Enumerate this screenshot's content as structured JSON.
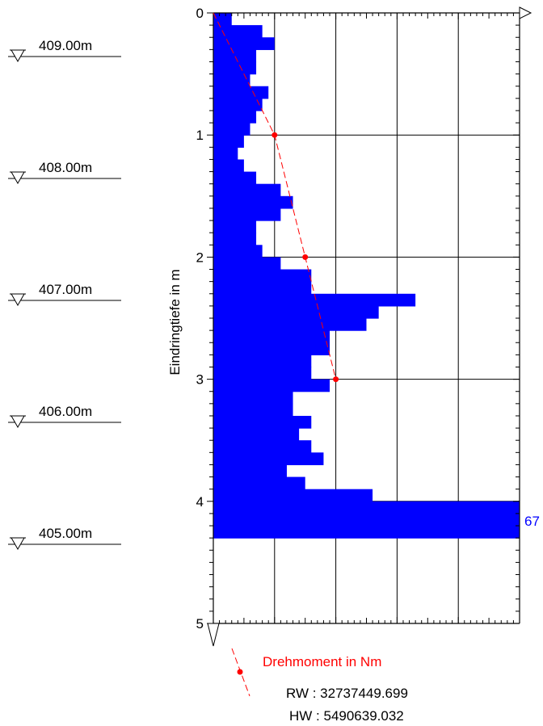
{
  "chart_data": {
    "type": "bar",
    "orientation": "horizontal",
    "ylabel": "Eindringtiefe in m",
    "ylim": [
      0,
      5
    ],
    "y_ticks": [
      "0",
      "1",
      "2",
      "3",
      "4",
      "5"
    ],
    "xlim": [
      0,
      50
    ],
    "grid": true,
    "colors": {
      "bars": "#0000ff",
      "torque": "#ff0000",
      "axes": "#000000"
    },
    "series": [
      {
        "kind": "blow-count-bars",
        "depth_from": [
          0.0,
          0.1,
          0.2,
          0.3,
          0.4,
          0.5,
          0.6,
          0.7,
          0.8,
          0.9,
          1.0,
          1.1,
          1.2,
          1.3,
          1.4,
          1.5,
          1.6,
          1.7,
          1.8,
          1.9,
          2.0,
          2.1,
          2.2,
          2.3,
          2.4,
          2.5,
          2.6,
          2.7,
          2.8,
          2.9,
          3.0,
          3.1,
          3.2,
          3.3,
          3.4,
          3.5,
          3.6,
          3.7,
          3.8,
          3.9,
          4.0,
          4.1,
          4.2
        ],
        "depth_to": [
          0.1,
          0.2,
          0.3,
          0.4,
          0.5,
          0.6,
          0.7,
          0.8,
          0.9,
          1.0,
          1.1,
          1.2,
          1.3,
          1.4,
          1.5,
          1.6,
          1.7,
          1.8,
          1.9,
          2.0,
          2.1,
          2.2,
          2.3,
          2.4,
          2.5,
          2.6,
          2.7,
          2.8,
          2.9,
          3.0,
          3.1,
          3.2,
          3.3,
          3.4,
          3.5,
          3.6,
          3.7,
          3.8,
          3.9,
          4.0,
          4.1,
          4.2,
          4.3
        ],
        "values": [
          3,
          8,
          10,
          7,
          7,
          6,
          9,
          8,
          7,
          6,
          5,
          4,
          5,
          7,
          11,
          13,
          11,
          7,
          7,
          8,
          11,
          16,
          16,
          33,
          27,
          25,
          19,
          19,
          16,
          16,
          19,
          13,
          13,
          16,
          14,
          16,
          18,
          12,
          15,
          26,
          50,
          50,
          50
        ],
        "clipped_value_label": "67"
      },
      {
        "name": "Drehmoment in Nm",
        "kind": "torque-line",
        "depth": [
          0,
          1,
          2,
          3
        ],
        "values": [
          0,
          10,
          15,
          20
        ]
      }
    ],
    "elevations": [
      "409.00m",
      "408.00m",
      "407.00m",
      "406.00m",
      "405.00m"
    ],
    "legend": {
      "label": "Drehmoment in Nm",
      "position": "bottom"
    }
  },
  "coordinates": {
    "rw": "RW : 32737449.699",
    "hw": "HW : 5490639.032"
  }
}
